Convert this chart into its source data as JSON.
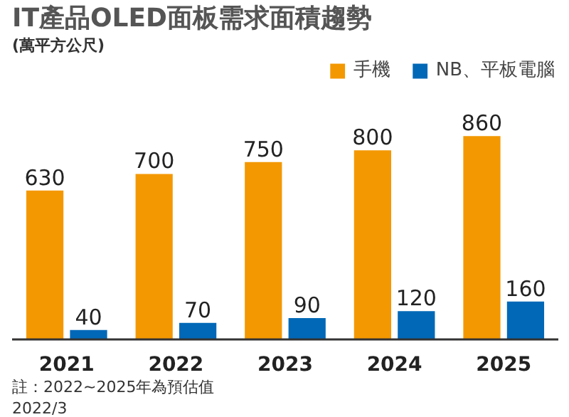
{
  "chart_data": {
    "type": "bar",
    "title": "IT產品OLED面板需求面積趨勢",
    "subtitle": "(萬平方公尺)",
    "categories": [
      "2021",
      "2022",
      "2023",
      "2024",
      "2025"
    ],
    "series": [
      {
        "name": "手機",
        "color": "#f39800",
        "values": [
          630,
          700,
          750,
          800,
          860
        ]
      },
      {
        "name": "NB、平板電腦",
        "color": "#0068b7",
        "values": [
          40,
          70,
          90,
          120,
          160
        ]
      }
    ],
    "data_labels": true,
    "legend": "top",
    "grid": false,
    "annotations": [
      "註：2022~2025年為預估值",
      "2022/3"
    ]
  }
}
